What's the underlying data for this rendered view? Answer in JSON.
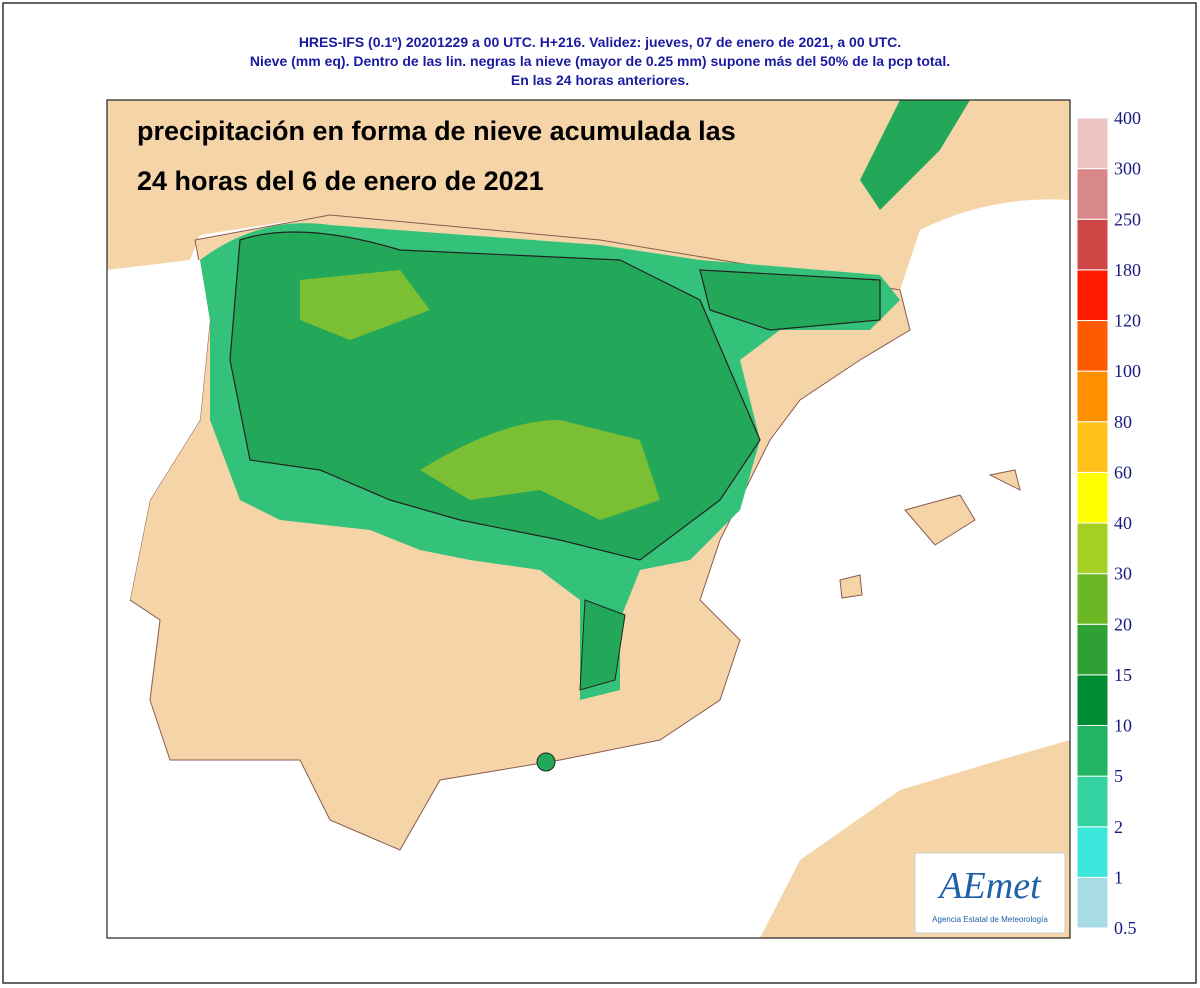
{
  "header": {
    "lines": [
      "HRES-IFS (0.1º) 20201229 a 00 UTC.  H+216. Validez: jueves, 07 de enero de 2021,  a  00 UTC.",
      "Nieve (mm eq). Dentro de las lin. negras la nieve (mayor de 0.25 mm) supone más del 50% de la pcp total.",
      "En las 24 horas anteriores."
    ]
  },
  "title": {
    "lines": [
      "precipitación en forma de nieve acumulada las",
      "24 horas del 6 de enero de 2021"
    ]
  },
  "legend": {
    "labels": [
      "0.5",
      "1",
      "2",
      "5",
      "10",
      "15",
      "20",
      "30",
      "40",
      "60",
      "80",
      "100",
      "120",
      "180",
      "250",
      "300",
      "400"
    ],
    "colors": [
      "#a8dce4",
      "#3ce8dc",
      "#34d2a0",
      "#22b462",
      "#008c32",
      "#2ea034",
      "#6cb824",
      "#a6d024",
      "#ffff00",
      "#ffc21a",
      "#ff9000",
      "#ff5a00",
      "#ff1a00",
      "#d04646",
      "#d88888",
      "#ecc4c4"
    ]
  },
  "logo": {
    "name": "AEmet",
    "subtitle": "Agencia Estatal de Meteorología"
  }
}
